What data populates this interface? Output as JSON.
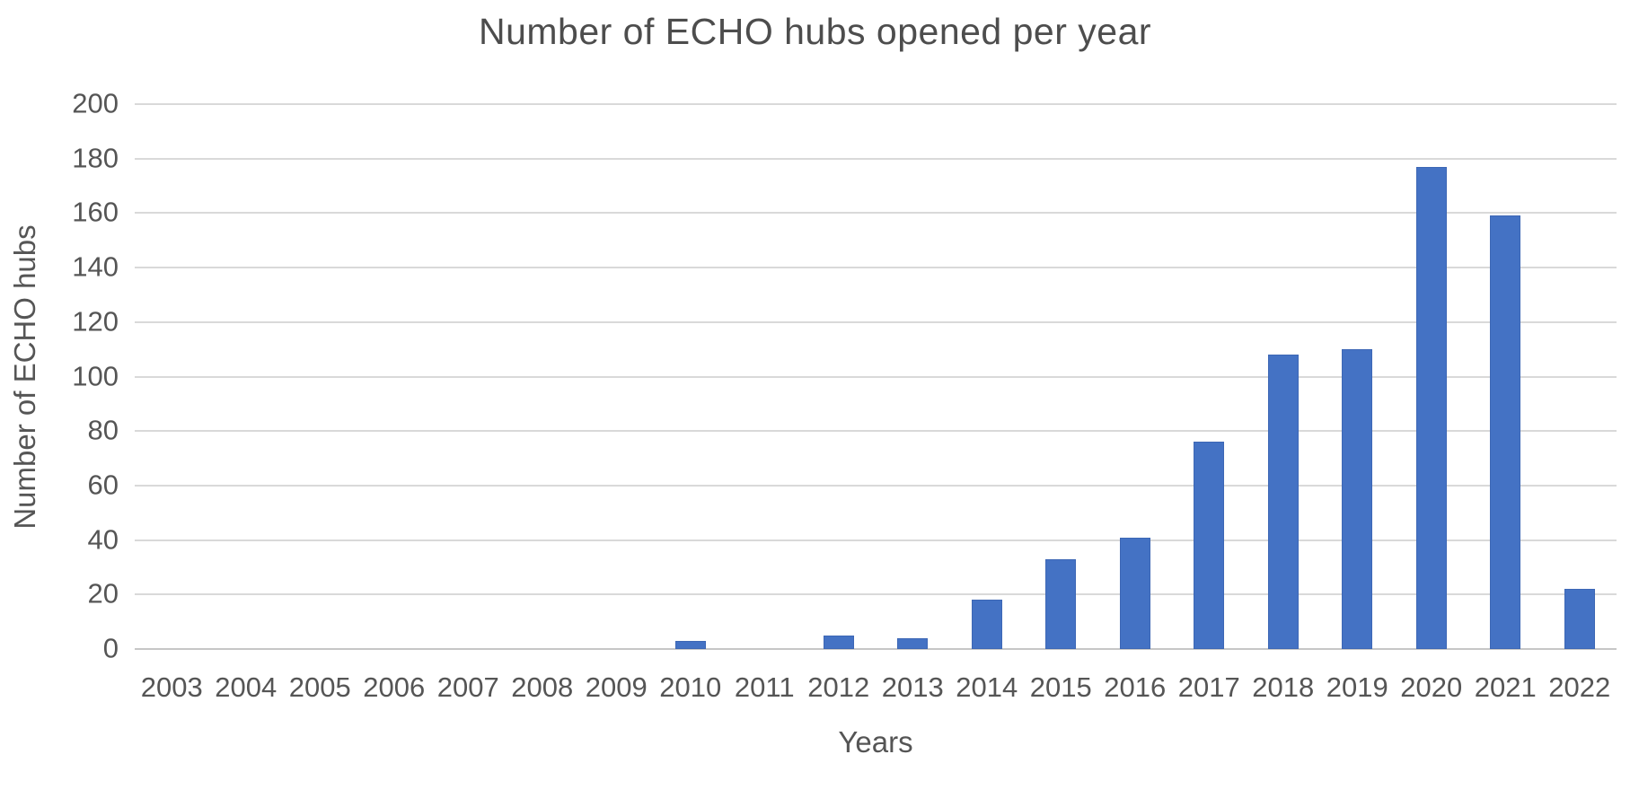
{
  "chart_data": {
    "type": "bar",
    "title": "Number of ECHO hubs opened per year",
    "xlabel": "Years",
    "ylabel": "Number of ECHO hubs",
    "categories": [
      "2003",
      "2004",
      "2005",
      "2006",
      "2007",
      "2008",
      "2009",
      "2010",
      "2011",
      "2012",
      "2013",
      "2014",
      "2015",
      "2016",
      "2017",
      "2018",
      "2019",
      "2020",
      "2021",
      "2022"
    ],
    "values": [
      0,
      0,
      0,
      0,
      0,
      0,
      0,
      3,
      0,
      5,
      4,
      18,
      33,
      41,
      76,
      108,
      110,
      177,
      159,
      22
    ],
    "ylim": [
      0,
      200
    ],
    "ytick_step": 20,
    "ytick_labels": [
      "0",
      "20",
      "40",
      "60",
      "80",
      "100",
      "120",
      "140",
      "160",
      "180",
      "200"
    ],
    "grid": true,
    "legend": "none",
    "bar_color": "#4472C4",
    "gridline_color": "#D9D9D9",
    "text_color": "#555555"
  }
}
